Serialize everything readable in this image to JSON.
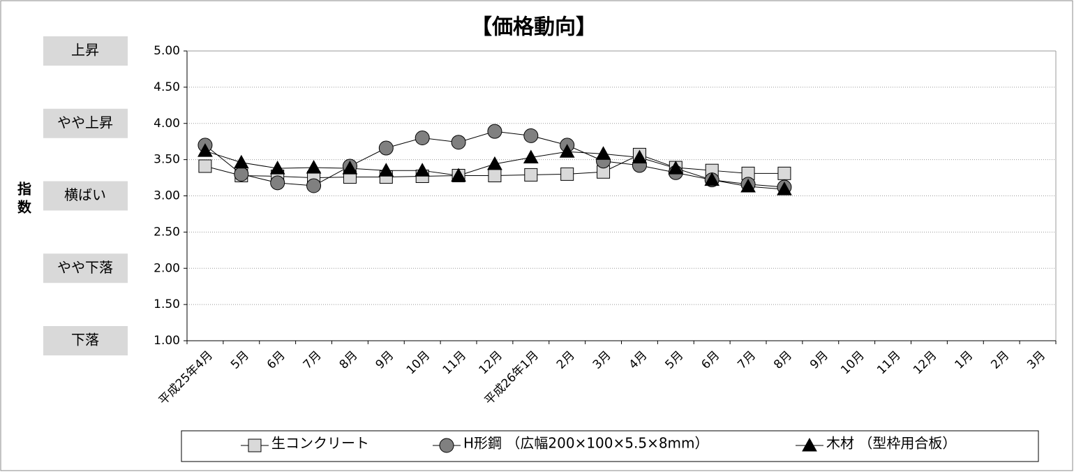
{
  "chart_data": {
    "type": "line",
    "title": "【価格動向】",
    "y_label": "指数",
    "categories": [
      "平成25年4月",
      "5月",
      "6月",
      "7月",
      "8月",
      "9月",
      "10月",
      "11月",
      "12月",
      "平成26年1月",
      "2月",
      "3月",
      "4月",
      "5月",
      "6月",
      "7月",
      "8月",
      "9月",
      "10月",
      "11月",
      "12月",
      "1月",
      "2月",
      "3月"
    ],
    "series": [
      {
        "name": "生コンクリート",
        "color": "#d9d9d9",
        "marker": "square",
        "values": [
          3.41,
          3.28,
          3.27,
          3.25,
          3.26,
          3.26,
          3.27,
          3.28,
          3.28,
          3.29,
          3.3,
          3.33,
          3.57,
          3.39,
          3.35,
          3.31,
          3.31,
          null,
          null,
          null,
          null,
          null,
          null,
          null
        ]
      },
      {
        "name": "H形鋼 （広幅200×100×5.5×8mm）",
        "color": "#808080",
        "marker": "circle",
        "values": [
          3.7,
          3.3,
          3.18,
          3.14,
          3.41,
          3.66,
          3.8,
          3.74,
          3.89,
          3.83,
          3.7,
          3.48,
          3.42,
          3.32,
          3.22,
          3.16,
          3.12,
          null,
          null,
          null,
          null,
          null,
          null,
          null
        ]
      },
      {
        "name": "木材 （型枠用合板）",
        "color": "#000000",
        "marker": "triangle",
        "values": [
          3.62,
          3.46,
          3.38,
          3.39,
          3.38,
          3.35,
          3.35,
          3.28,
          3.44,
          3.53,
          3.61,
          3.58,
          3.53,
          3.38,
          3.22,
          3.13,
          3.09,
          null,
          null,
          null,
          null,
          null,
          null,
          null
        ]
      }
    ],
    "ylim": [
      1,
      5
    ],
    "yticks": [
      {
        "value": 1,
        "label": "1.00"
      },
      {
        "value": 1.5,
        "label": "1.50"
      },
      {
        "value": 2,
        "label": "2.00"
      },
      {
        "value": 2.5,
        "label": "2.50"
      },
      {
        "value": 3,
        "label": "3.00"
      },
      {
        "value": 3.5,
        "label": "3.50"
      },
      {
        "value": 4,
        "label": "4.00"
      },
      {
        "value": 4.5,
        "label": "4.50"
      },
      {
        "value": 5,
        "label": "5.00"
      }
    ],
    "level_labels": [
      {
        "value": 5,
        "label": "上昇"
      },
      {
        "value": 4,
        "label": "やや上昇"
      },
      {
        "value": 3,
        "label": "横ばい"
      },
      {
        "value": 2,
        "label": "やや下落"
      },
      {
        "value": 1,
        "label": "下落"
      }
    ],
    "grid": true
  }
}
